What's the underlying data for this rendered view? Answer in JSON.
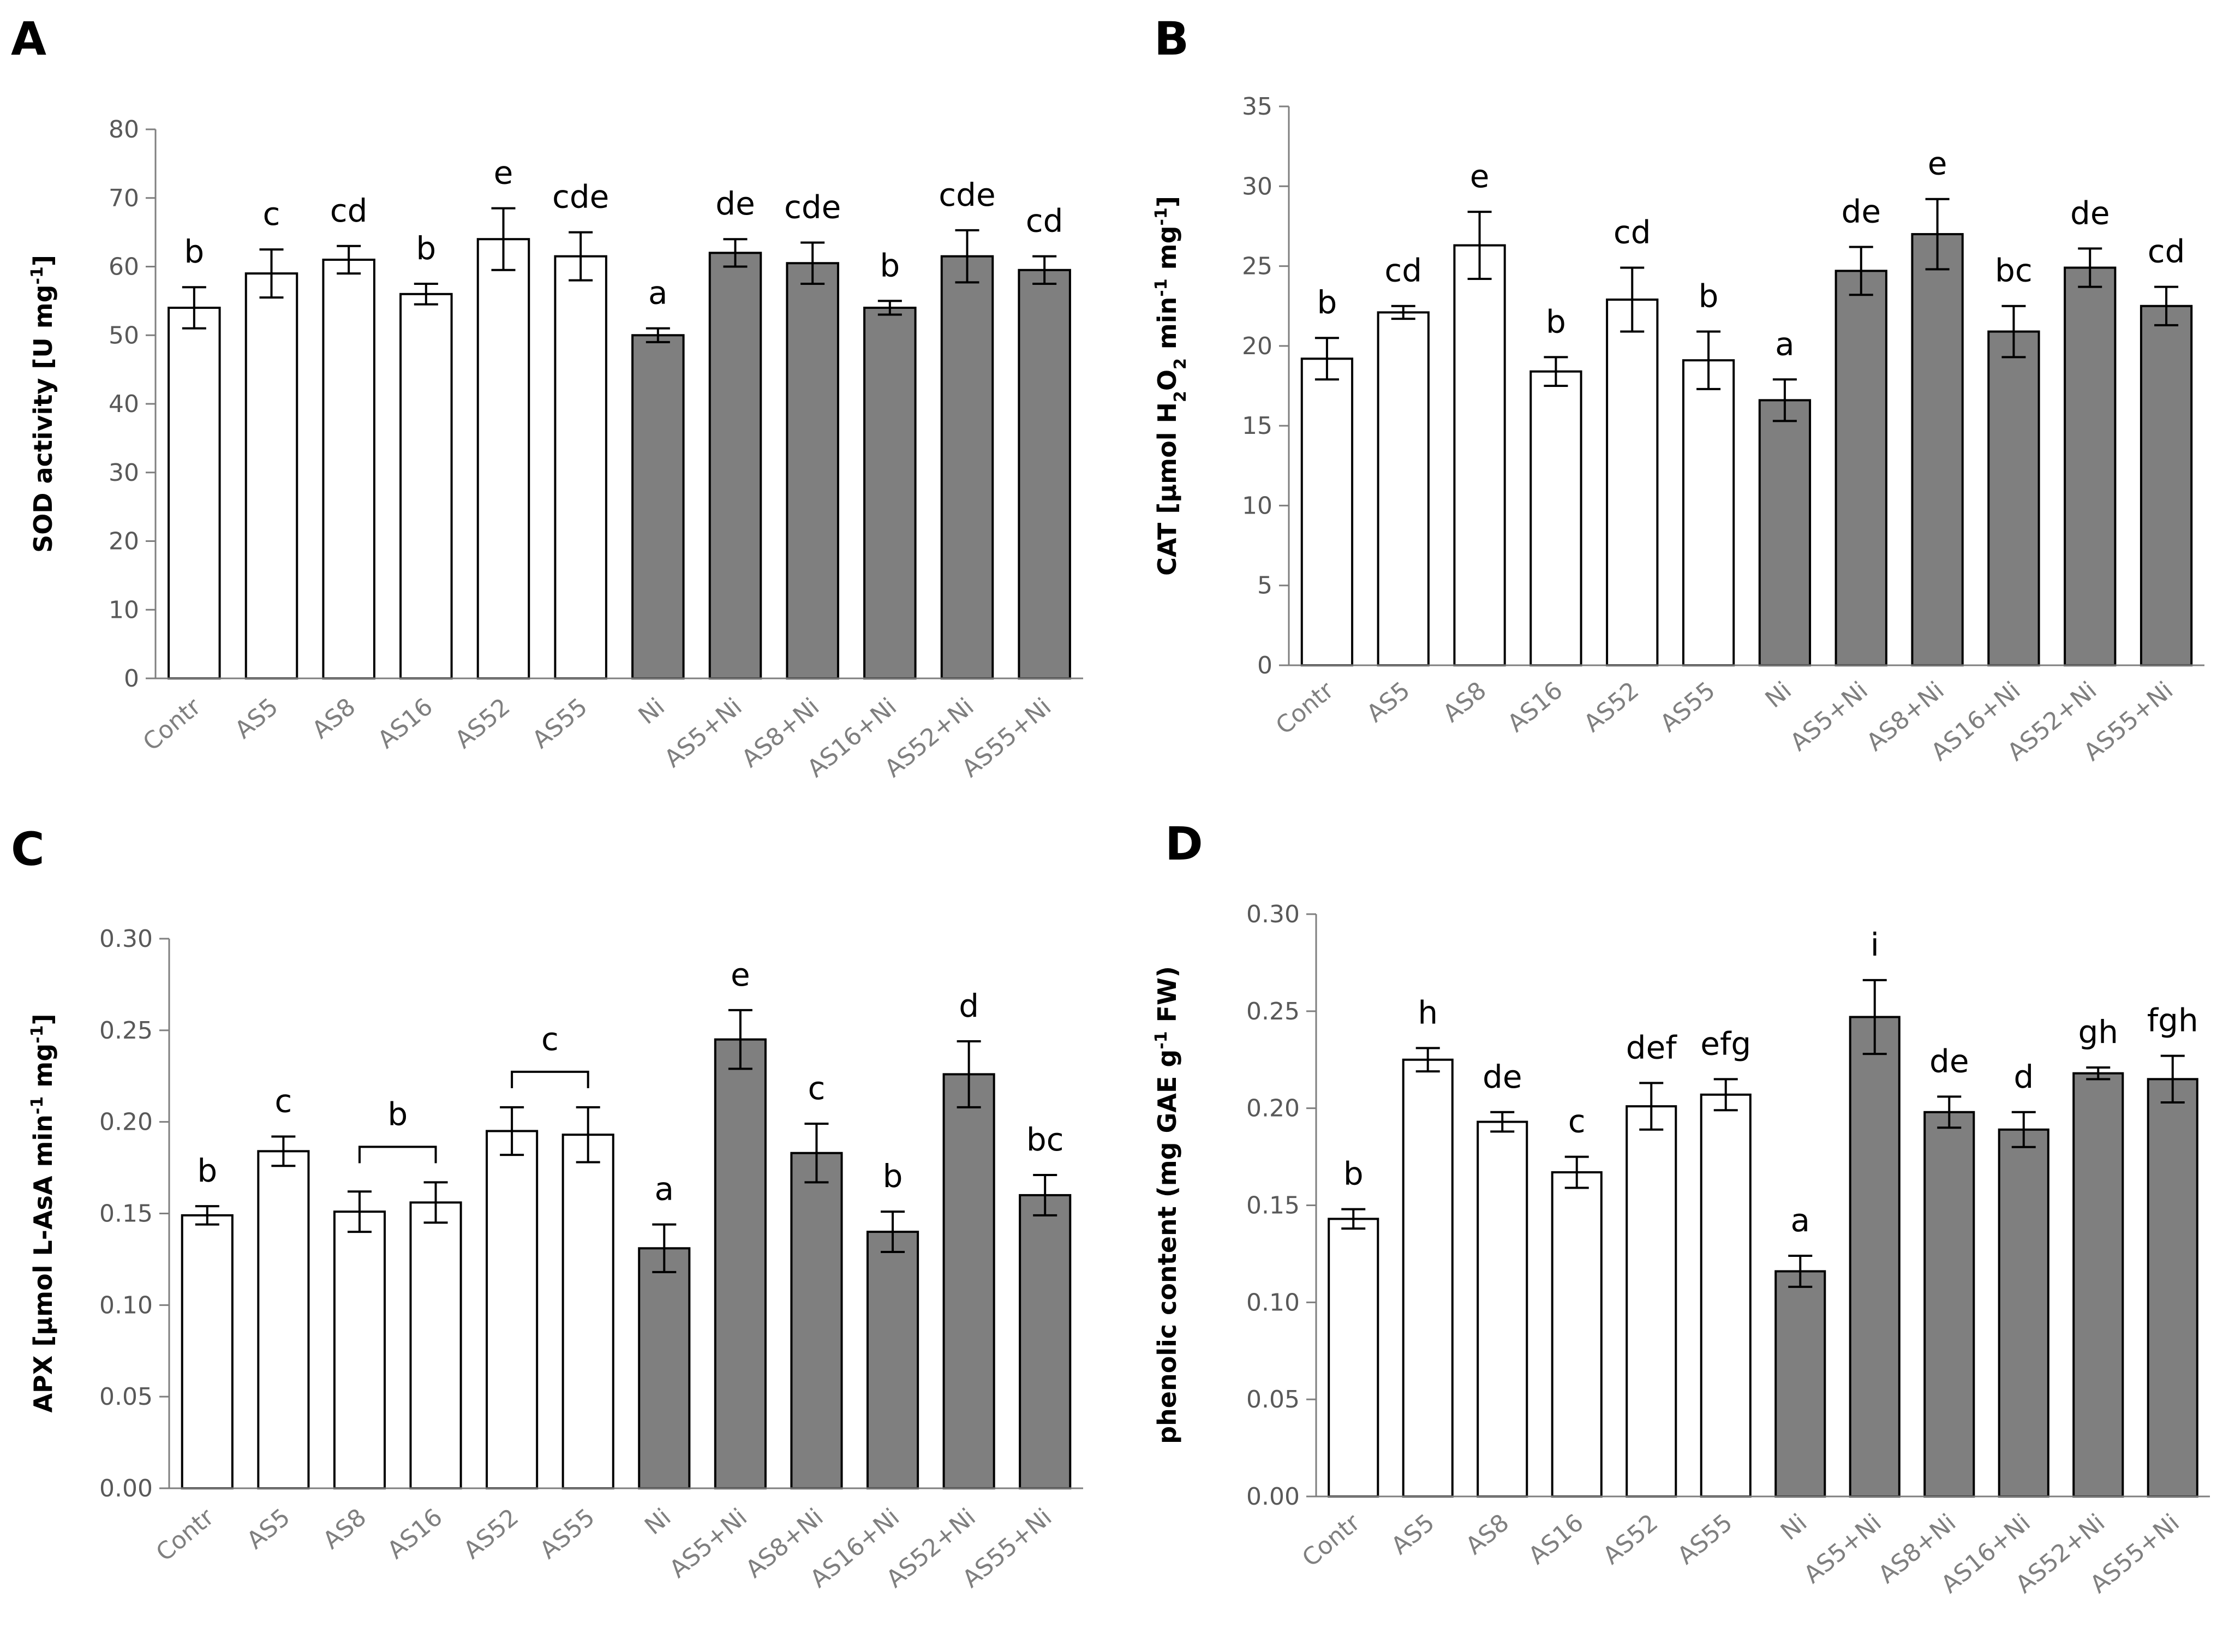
{
  "colors": {
    "control_fill": "#ffffff",
    "ni_fill": "#7f7f7f",
    "bar_stroke": "#000000"
  },
  "chart_data": [
    {
      "panel": "A",
      "type": "bar",
      "title": "",
      "ylabel": "SOD activity [U mg⁻¹]",
      "ylim": [
        0,
        80
      ],
      "yticks": [
        "0",
        "10",
        "20",
        "30",
        "40",
        "50",
        "60",
        "70",
        "80"
      ],
      "tick_step": 10,
      "categories": [
        "Contr",
        "AS5",
        "AS8",
        "AS16",
        "AS52",
        "AS55",
        "Ni",
        "AS5+Ni",
        "AS8+Ni",
        "AS16+Ni",
        "AS52+Ni",
        "AS55+Ni"
      ],
      "values": [
        54,
        59,
        61,
        56,
        64,
        61.5,
        50,
        62,
        60.5,
        54,
        61.5,
        59.5
      ],
      "errors": [
        3,
        3.5,
        2,
        1.5,
        4.5,
        3.5,
        1,
        2,
        3,
        1,
        3.8,
        2
      ],
      "letters": [
        "b",
        "c",
        "cd",
        "b",
        "e",
        "cde",
        "a",
        "de",
        "cde",
        "b",
        "cde",
        "cd"
      ],
      "brackets": [],
      "grid": false
    },
    {
      "panel": "B",
      "type": "bar",
      "title": "",
      "ylabel": "CAT [µmol H₂O₂ min⁻¹ mg⁻¹]",
      "ylim": [
        0,
        35
      ],
      "yticks": [
        "0",
        "5",
        "10",
        "15",
        "20",
        "25",
        "30",
        "35"
      ],
      "tick_step": 5,
      "categories": [
        "Contr",
        "AS5",
        "AS8",
        "AS16",
        "AS52",
        "AS55",
        "Ni",
        "AS5+Ni",
        "AS8+Ni",
        "AS16+Ni",
        "AS52+Ni",
        "AS55+Ni"
      ],
      "values": [
        19.2,
        22.1,
        26.3,
        18.4,
        22.9,
        19.1,
        16.6,
        24.7,
        27,
        20.9,
        24.9,
        22.5
      ],
      "errors": [
        1.3,
        0.4,
        2.1,
        0.9,
        2,
        1.8,
        1.3,
        1.5,
        2.2,
        1.6,
        1.2,
        1.2
      ],
      "letters": [
        "b",
        "cd",
        "e",
        "b",
        "cd",
        "b",
        "a",
        "de",
        "e",
        "bc",
        "de",
        "cd"
      ],
      "brackets": [],
      "grid": false
    },
    {
      "panel": "C",
      "type": "bar",
      "title": "",
      "ylabel": "APX [µmol L-AsA min⁻¹ mg⁻¹]",
      "ylim": [
        0,
        0.3
      ],
      "yticks": [
        "0.00",
        "0.05",
        "0.10",
        "0.15",
        "0.20",
        "0.25",
        "0.30"
      ],
      "tick_step": 0.05,
      "categories": [
        "Contr",
        "AS5",
        "AS8",
        "AS16",
        "AS52",
        "AS55",
        "Ni",
        "AS5+Ni",
        "AS8+Ni",
        "AS16+Ni",
        "AS52+Ni",
        "AS55+Ni"
      ],
      "values": [
        0.149,
        0.184,
        0.151,
        0.156,
        0.195,
        0.193,
        0.131,
        0.245,
        0.183,
        0.14,
        0.226,
        0.16
      ],
      "errors": [
        0.005,
        0.008,
        0.011,
        0.011,
        0.013,
        0.015,
        0.013,
        0.016,
        0.016,
        0.011,
        0.018,
        0.011
      ],
      "letters": [
        "b",
        "c",
        "",
        "",
        "",
        "",
        "a",
        "e",
        "c",
        "b",
        "d",
        "bc"
      ],
      "brackets": [
        {
          "from": 2,
          "to": 3,
          "label": "b"
        },
        {
          "from": 4,
          "to": 5,
          "label": "c"
        }
      ],
      "grid": false
    },
    {
      "panel": "D",
      "type": "bar",
      "title": "",
      "ylabel": "phenolic content (mg GAE g⁻¹ FW)",
      "ylim": [
        0,
        0.3
      ],
      "yticks": [
        "0.00",
        "0.05",
        "0.10",
        "0.15",
        "0.20",
        "0.25",
        "0.30"
      ],
      "tick_step": 0.05,
      "categories": [
        "Contr",
        "AS5",
        "AS8",
        "AS16",
        "AS52",
        "AS55",
        "Ni",
        "AS5+Ni",
        "AS8+Ni",
        "AS16+Ni",
        "AS52+Ni",
        "AS55+Ni"
      ],
      "values": [
        0.143,
        0.225,
        0.193,
        0.167,
        0.201,
        0.207,
        0.116,
        0.247,
        0.198,
        0.189,
        0.218,
        0.215
      ],
      "errors": [
        0.005,
        0.006,
        0.005,
        0.008,
        0.012,
        0.008,
        0.008,
        0.019,
        0.008,
        0.009,
        0.003,
        0.012
      ],
      "letters": [
        "b",
        "h",
        "de",
        "c",
        "def",
        "efg",
        "a",
        "i",
        "de",
        "d",
        "gh",
        "fgh"
      ],
      "brackets": [],
      "grid": false
    }
  ]
}
